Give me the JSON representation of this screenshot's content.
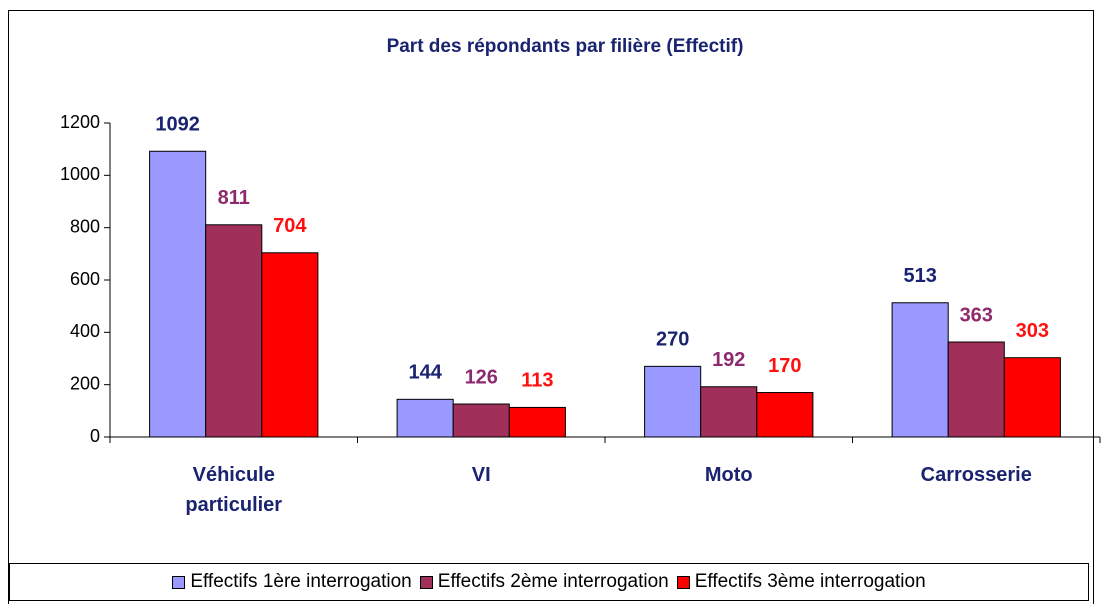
{
  "chart_data": {
    "type": "bar",
    "title": "Part  des répondants par filière (Effectif)",
    "categories": [
      "Véhicule particulier",
      "VI",
      "Moto",
      "Carrosserie"
    ],
    "series": [
      {
        "name": "Effectifs 1ère interrogation",
        "color": "#9999ff",
        "label_color": "#1a2370",
        "values": [
          1092,
          144,
          270,
          513
        ]
      },
      {
        "name": "Effectifs 2ème interrogation",
        "color": "#a0305a",
        "label_color": "#8e2a6e",
        "values": [
          811,
          126,
          192,
          363
        ]
      },
      {
        "name": "Effectifs 3ème interrogation",
        "color": "#ff0000",
        "label_color": "#ff1010",
        "values": [
          704,
          113,
          170,
          303
        ]
      }
    ],
    "ylim": [
      0,
      1200
    ],
    "yticks": [
      0,
      200,
      400,
      600,
      800,
      1000,
      1200
    ],
    "legend": "bottom"
  }
}
